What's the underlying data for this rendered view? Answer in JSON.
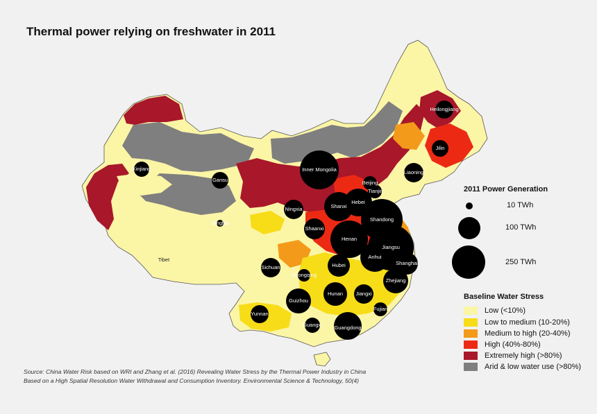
{
  "title": "Thermal power relying on freshwater in 2011",
  "colors": {
    "background": "#f1f1f1",
    "low": "#fbf5a6",
    "low_medium": "#f7dc18",
    "medium_high": "#f39a1a",
    "high": "#ec2a14",
    "extremely_high": "#a8172a",
    "arid": "#7f7f7f",
    "bubble": "#000000"
  },
  "provinces": [
    {
      "name": "Xinjiang"
    },
    {
      "name": "Gansu"
    },
    {
      "name": "Inner Mongolia"
    },
    {
      "name": "Heilongjiang"
    },
    {
      "name": "Jilin"
    },
    {
      "name": "Liaoning"
    },
    {
      "name": "Beijing"
    },
    {
      "name": "Tianjin"
    },
    {
      "name": "Hebei"
    },
    {
      "name": "Shanxi"
    },
    {
      "name": "Ningxia"
    },
    {
      "name": "Qinghai"
    },
    {
      "name": "Shaanxi"
    },
    {
      "name": "Shandong"
    },
    {
      "name": "Henan"
    },
    {
      "name": "Jiangsu"
    },
    {
      "name": "Anhui"
    },
    {
      "name": "Shanghai"
    },
    {
      "name": "Tibet"
    },
    {
      "name": "Sichuan"
    },
    {
      "name": "Hubei"
    },
    {
      "name": "Zhejiang"
    },
    {
      "name": "Chongqing"
    },
    {
      "name": "Hunan"
    },
    {
      "name": "Jiangxi"
    },
    {
      "name": "Guizhou"
    },
    {
      "name": "Fujian"
    },
    {
      "name": "Yunnan"
    },
    {
      "name": "Guangxi"
    },
    {
      "name": "Guangdong"
    }
  ],
  "legend_power": {
    "title": "2011 Power Generation",
    "items": [
      {
        "label": "10 TWh",
        "value": 10
      },
      {
        "label": "100 TWh",
        "value": 100
      },
      {
        "label": "250 TWh",
        "value": 250
      }
    ]
  },
  "legend_stress": {
    "title": "Baseline Water Stress",
    "items": [
      {
        "label": "Low (<10%)",
        "color": "#fbf5a6"
      },
      {
        "label": "Low to medium (10-20%)",
        "color": "#f7dc18"
      },
      {
        "label": "Medium to high (20-40%)",
        "color": "#f39a1a"
      },
      {
        "label": "High (40%-80%)",
        "color": "#ec2a14"
      },
      {
        "label": "Extremely high (>80%)",
        "color": "#a8172a"
      },
      {
        "label": "Arid & low water use (>80%)",
        "color": "#7f7f7f"
      }
    ]
  },
  "source": {
    "line1": "Source: China Water Risk based on WRI and Zhang et al. (2016) Revealing Water Stress by the Thermal Power Industry in China",
    "line2": "Based on a High Spatial Resolution Water Withdrawal and Consumption Inventory. Environmental Science & Technology, 50(4)"
  }
}
